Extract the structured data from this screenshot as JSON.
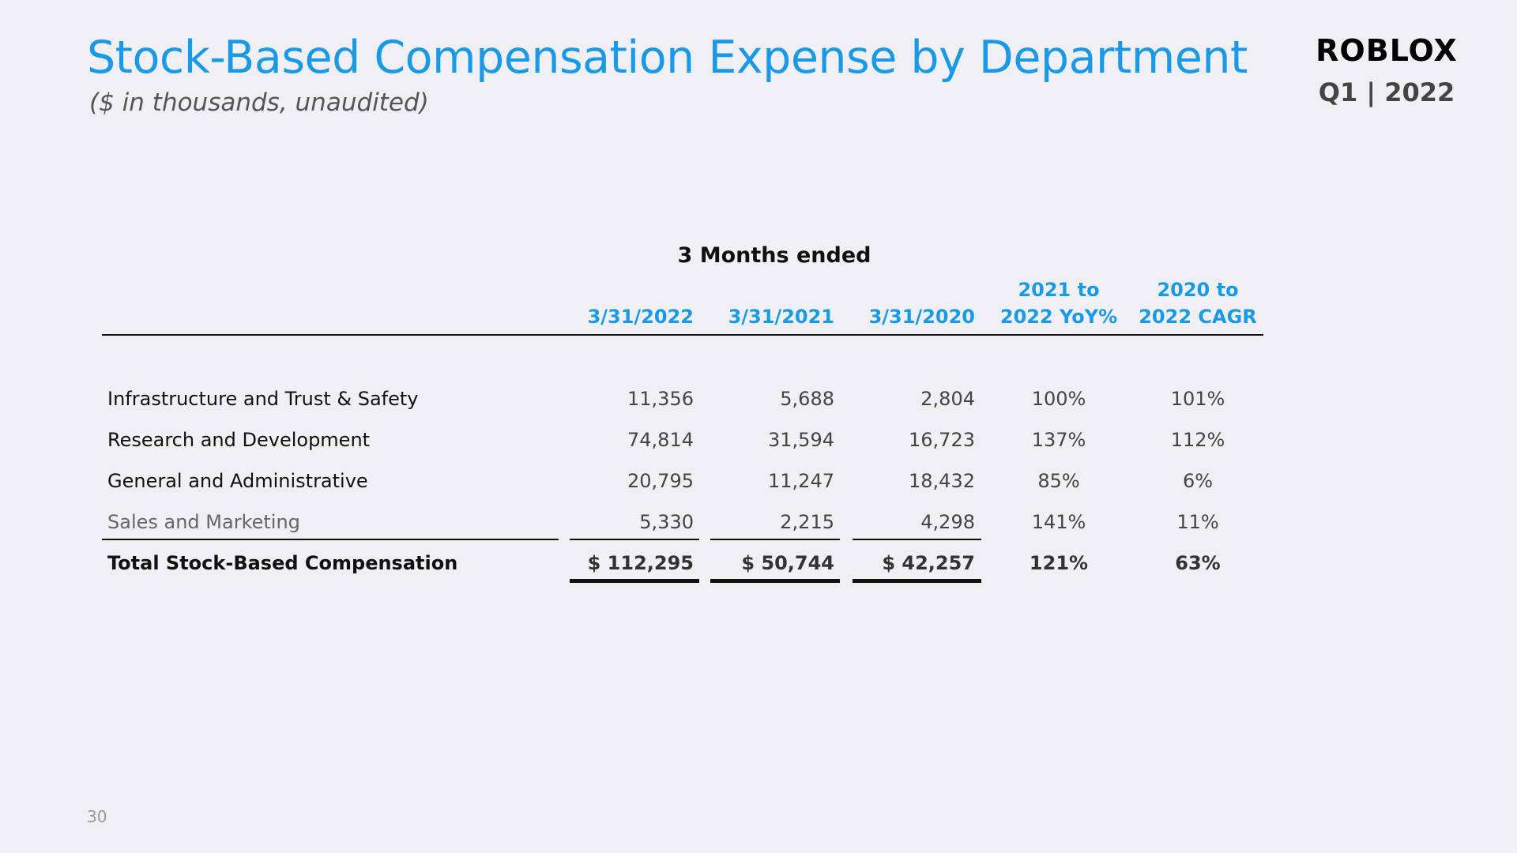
{
  "header": {
    "title": "Stock-Based Compensation Expense by Department",
    "subtitle": "($ in thousands, unaudited)",
    "logo_text": "ROBLOX",
    "period": "Q1 | 2022"
  },
  "table": {
    "group_header": "3 Months ended",
    "columns": {
      "c2022": "3/31/2022",
      "c2021": "3/31/2021",
      "c2020": "3/31/2020",
      "yoy_line1": "2021 to",
      "yoy_line2": "2022 YoY%",
      "cagr_line1": "2020 to",
      "cagr_line2": "2022 CAGR"
    },
    "rows": [
      {
        "label": "Infrastructure and Trust & Safety",
        "c2022": "11,356",
        "c2021": "5,688",
        "c2020": "2,804",
        "yoy": "100%",
        "cagr": "101%"
      },
      {
        "label": "Research and Development",
        "c2022": "74,814",
        "c2021": "31,594",
        "c2020": "16,723",
        "yoy": "137%",
        "cagr": "112%"
      },
      {
        "label": "General and Administrative",
        "c2022": "20,795",
        "c2021": "11,247",
        "c2020": "18,432",
        "yoy": "85%",
        "cagr": "6%"
      },
      {
        "label": "Sales and Marketing",
        "c2022": "5,330",
        "c2021": "2,215",
        "c2020": "4,298",
        "yoy": "141%",
        "cagr": "11%"
      }
    ],
    "total": {
      "label": "Total Stock-Based Compensation",
      "c2022": "$ 112,295",
      "c2021": "$ 50,744",
      "c2020": "$ 42,257",
      "yoy": "121%",
      "cagr": "63%"
    }
  },
  "footer": {
    "page_number": "30"
  }
}
